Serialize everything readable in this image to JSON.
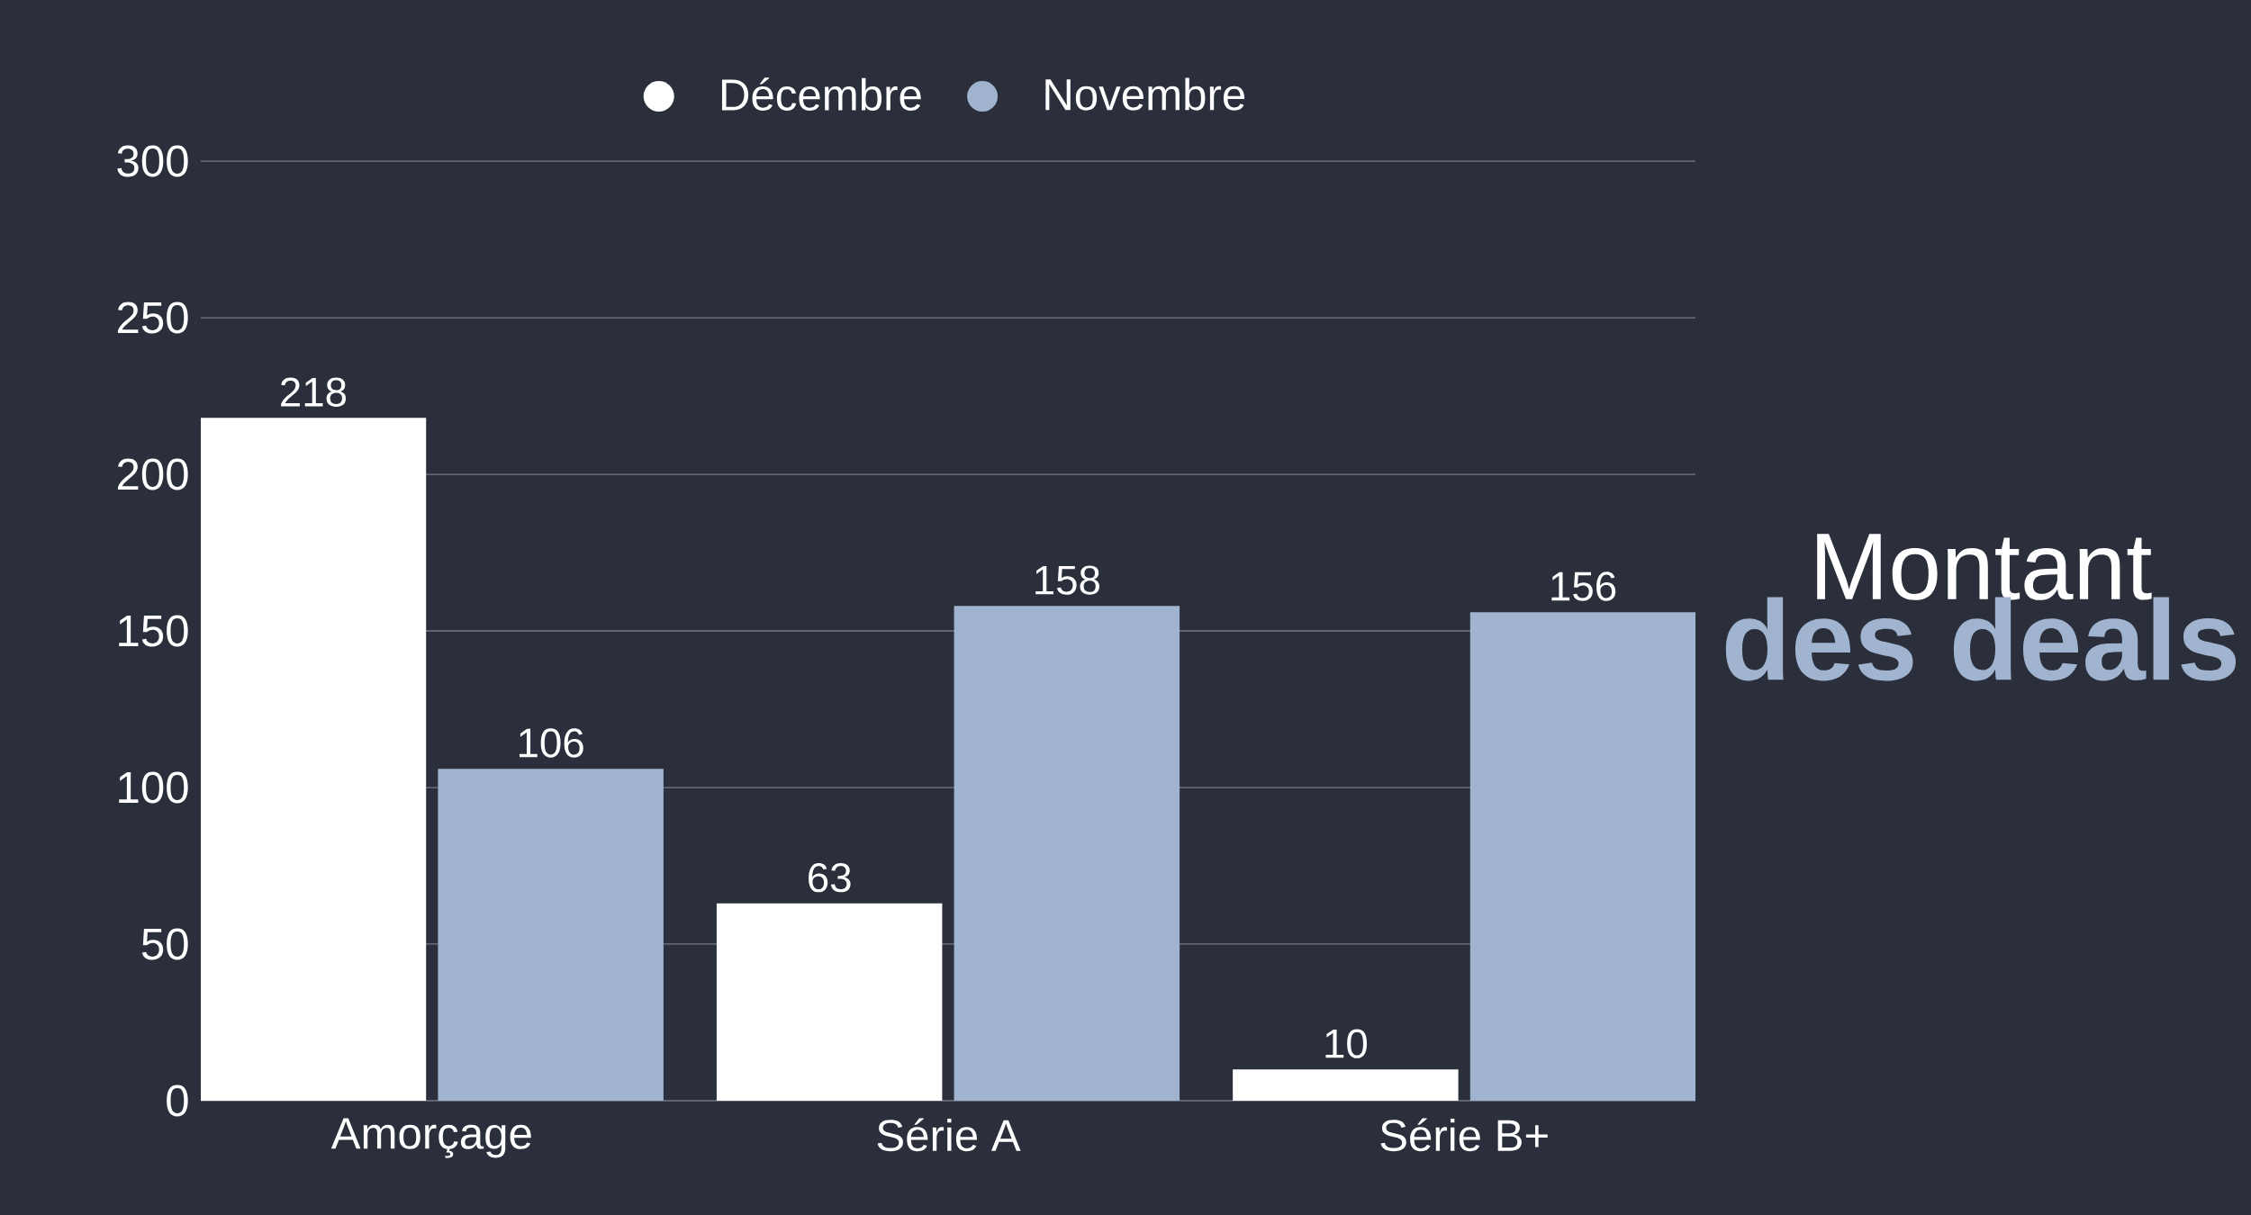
{
  "chart_data": {
    "type": "bar",
    "title": "Montant",
    "subtitle": "des deals",
    "categories": [
      "Amorçage",
      "Série A",
      "Série B+"
    ],
    "series": [
      {
        "name": "Décembre",
        "color": "#ffffff",
        "values": [
          218,
          63,
          10
        ]
      },
      {
        "name": "Novembre",
        "color": "#a0b4cf",
        "values": [
          106,
          158,
          156
        ]
      }
    ],
    "ylim": [
      0,
      300
    ],
    "yticks": [
      0,
      50,
      100,
      150,
      200,
      250,
      300
    ],
    "grid": "y",
    "legend": "top",
    "data_labels": true
  }
}
